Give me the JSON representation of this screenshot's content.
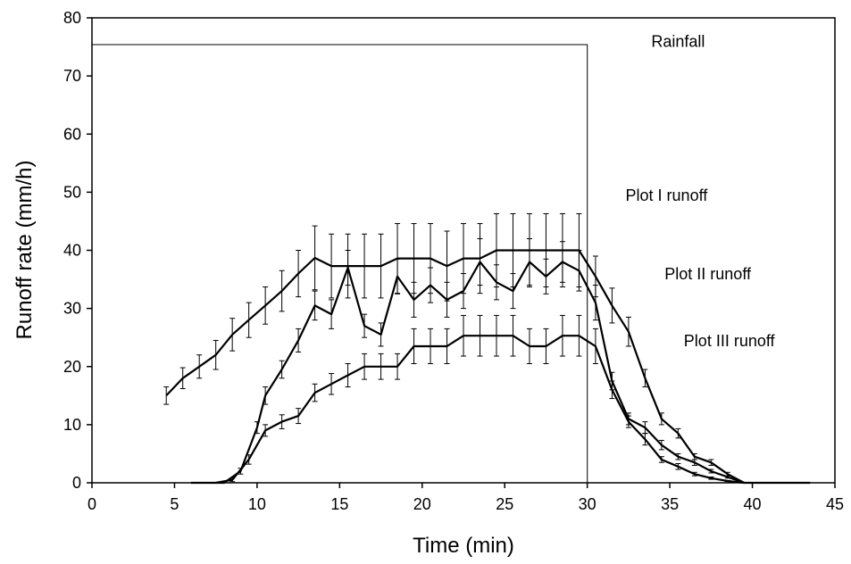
{
  "chart_data": {
    "type": "line",
    "title": "",
    "xlabel": "Time (min)",
    "ylabel": "Runoff rate (mm/h)",
    "xlim": [
      0,
      45
    ],
    "ylim": [
      0,
      80
    ],
    "xticks": [
      0,
      5,
      10,
      15,
      20,
      25,
      30,
      35,
      40,
      45
    ],
    "yticks": [
      0,
      10,
      20,
      30,
      40,
      50,
      60,
      70,
      80
    ],
    "grid": false,
    "legend": "none",
    "annotations": [
      {
        "text": "Rainfall",
        "x": 35.5,
        "y": 75
      },
      {
        "text": "Plot I runoff",
        "x": 34.8,
        "y": 48.5
      },
      {
        "text": "Plot II runoff",
        "x": 37.3,
        "y": 35
      },
      {
        "text": "Plot III runoff",
        "x": 38.6,
        "y": 23.5
      }
    ],
    "series": [
      {
        "name": "Rainfall",
        "style": "step",
        "x": [
          0,
          30,
          30
        ],
        "y": [
          75.4,
          75.4,
          0
        ]
      },
      {
        "name": "Plot I runoff",
        "x": [
          4.5,
          5.5,
          6.5,
          7.5,
          8.5,
          9.5,
          10.5,
          11.5,
          12.5,
          13.5,
          14.5,
          15.5,
          16.5,
          17.5,
          18.5,
          19.5,
          20.5,
          21.5,
          22.5,
          23.5,
          24.5,
          25.5,
          26.5,
          27.5,
          28.5,
          29.5,
          30.5,
          31.5,
          32.5,
          33.5,
          34.5,
          35.5,
          36.5,
          37.5,
          38.5,
          39.5,
          40.5,
          41.5,
          42.5,
          43.5
        ],
        "y": [
          15,
          18,
          20,
          22,
          25.5,
          28,
          30.5,
          33,
          36,
          38.7,
          37.3,
          37.3,
          37.3,
          37.3,
          38.6,
          38.6,
          38.6,
          37.3,
          38.6,
          38.6,
          40,
          40,
          40,
          40,
          40,
          40,
          35.5,
          30.5,
          26,
          18,
          11,
          8.5,
          4.5,
          3.5,
          1.5,
          0,
          0,
          0,
          0,
          0
        ],
        "error": [
          1.5,
          1.8,
          2,
          2.5,
          2.8,
          3,
          3.2,
          3.5,
          4,
          5.5,
          5.5,
          5.5,
          5.5,
          5.5,
          6,
          6,
          6,
          6,
          6,
          6,
          6.3,
          6.3,
          6.3,
          6.3,
          6.3,
          6.3,
          3.5,
          3,
          2.5,
          1.5,
          1,
          0.8,
          0.5,
          0.5,
          0.3,
          0,
          0,
          0,
          0,
          0
        ]
      },
      {
        "name": "Plot II runoff",
        "x": [
          6,
          7,
          8,
          9,
          10,
          10.5,
          11.5,
          12.5,
          13.5,
          14.5,
          15.5,
          16.5,
          17.5,
          18.5,
          19.5,
          20.5,
          21.5,
          22.5,
          23.5,
          24.5,
          25.5,
          26.5,
          27.5,
          28.5,
          29.5,
          30.5,
          31.5,
          32.5,
          33.5,
          34.5,
          35.5,
          36.5,
          37.5,
          38.5,
          39.5
        ],
        "y": [
          0,
          0,
          0,
          2,
          9.5,
          15,
          19.5,
          24.5,
          30.5,
          29,
          37,
          27,
          25.5,
          35.5,
          31.5,
          34,
          31.5,
          33,
          38,
          34.5,
          33,
          38,
          35.5,
          38,
          36.5,
          31,
          17.5,
          11,
          9.5,
          6.5,
          4.5,
          3.5,
          2,
          1,
          0
        ],
        "error": [
          0,
          0,
          0,
          0.5,
          1,
          1.5,
          1.5,
          2,
          2.5,
          2.5,
          3,
          2,
          2,
          3,
          3,
          3,
          3,
          3,
          4,
          3,
          3,
          4,
          3,
          3.5,
          3.5,
          3,
          1.5,
          1,
          1,
          0.8,
          0.5,
          0.5,
          0.3,
          0.2,
          0
        ]
      },
      {
        "name": "Plot III runoff",
        "x": [
          7.5,
          8.5,
          9.5,
          10.5,
          11.5,
          12.5,
          13.5,
          14.5,
          15.5,
          16.5,
          17.5,
          18.5,
          19.5,
          20.5,
          21.5,
          22.5,
          23.5,
          24.5,
          25.5,
          26.5,
          27.5,
          28.5,
          29.5,
          30.5,
          31.5,
          32.5,
          33.5,
          34.5,
          35.5,
          36.5,
          37.5,
          38.5,
          39.5
        ],
        "y": [
          0,
          0.5,
          4,
          9,
          10.5,
          11.5,
          15.5,
          17,
          18.5,
          20,
          20,
          20,
          23.5,
          23.5,
          23.5,
          25.3,
          25.3,
          25.3,
          25.3,
          23.5,
          23.5,
          25.3,
          25.3,
          23.5,
          16,
          10.5,
          7.5,
          4,
          2.8,
          1.5,
          0.8,
          0.3,
          0
        ],
        "error": [
          0,
          0.3,
          0.8,
          1,
          1.2,
          1.3,
          1.5,
          1.8,
          2,
          2.2,
          2.2,
          2.2,
          3,
          3,
          3,
          3.5,
          3.5,
          3.5,
          3.5,
          3,
          3,
          3.5,
          3.5,
          3,
          1.5,
          1,
          1,
          0.5,
          0.5,
          0.3,
          0.2,
          0.1,
          0
        ]
      }
    ]
  }
}
